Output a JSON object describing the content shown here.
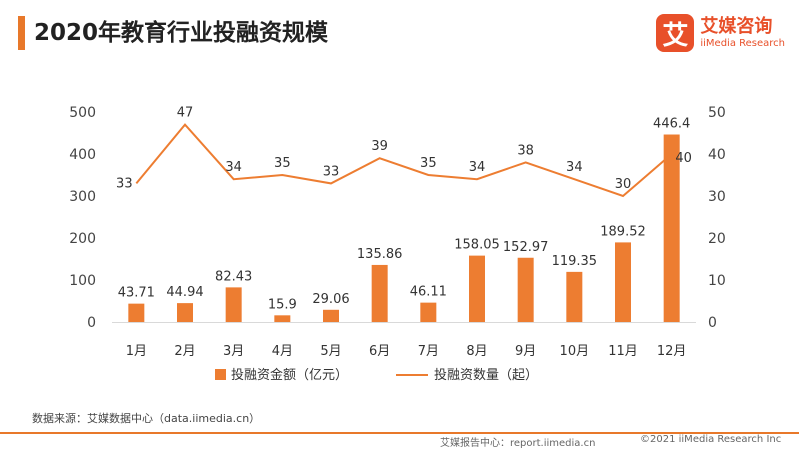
{
  "header": {
    "title": "2020年教育行业投融资规模",
    "logo_mark": "艾",
    "logo_name": "艾媒咨询",
    "logo_en": "iiMedia Research"
  },
  "footer": {
    "source": "数据来源：艾媒数据中心（data.iimedia.cn）",
    "report": "艾媒报告中心：report.iimedia.cn",
    "copyright": "©2021  iiMedia Research  Inc"
  },
  "colors": {
    "accent": "#e8782a",
    "bar": "#ed7d31",
    "line": "#ed7d31",
    "logo": "#e8502a"
  },
  "chart_data": {
    "type": "bar",
    "title": "2020年教育行业投融资规模",
    "categories": [
      "1月",
      "2月",
      "3月",
      "4月",
      "5月",
      "6月",
      "7月",
      "8月",
      "9月",
      "10月",
      "11月",
      "12月"
    ],
    "series": [
      {
        "name": "投融资金额（亿元）",
        "type": "bar",
        "axis": "left",
        "values": [
          43.71,
          44.94,
          82.43,
          15.9,
          29.06,
          135.86,
          46.11,
          158.05,
          152.97,
          119.35,
          189.52,
          446.4
        ]
      },
      {
        "name": "投融资数量（起）",
        "type": "line",
        "axis": "right",
        "values": [
          33,
          47,
          34,
          35,
          33,
          39,
          35,
          34,
          38,
          34,
          30,
          40
        ]
      }
    ],
    "y_left": {
      "min": 0,
      "max": 500,
      "ticks": [
        0,
        100,
        200,
        300,
        400,
        500
      ]
    },
    "y_right": {
      "min": 0,
      "max": 50,
      "ticks": [
        0,
        10,
        20,
        30,
        40,
        50
      ]
    },
    "legend_position": "bottom"
  }
}
